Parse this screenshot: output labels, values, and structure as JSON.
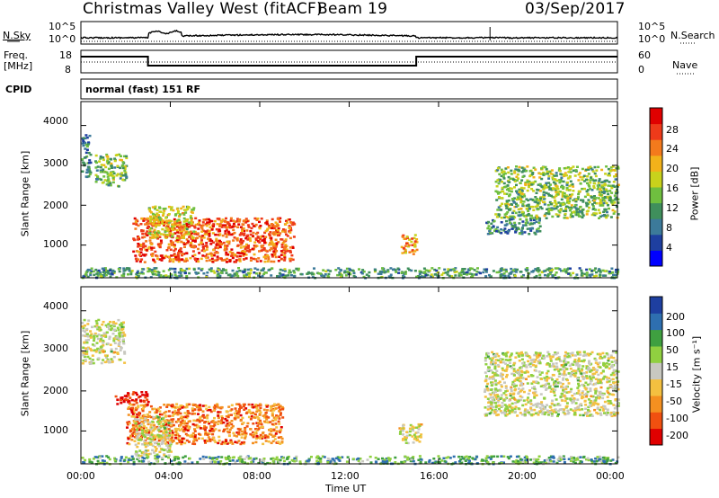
{
  "header": {
    "radar": "Christmas Valley West (fitACF)",
    "beam": "Beam 19",
    "date": "03/Sep/2017"
  },
  "nsky_panel": {
    "left_label": "N.Sky",
    "right_label": "N.Search",
    "left_ticks": [
      "10^5",
      "10^0"
    ],
    "right_ticks": [
      "10^5",
      "10^0"
    ]
  },
  "freq_panel": {
    "left_label_1": "Freq.",
    "left_label_2": "[MHz]",
    "right_label": "Nave",
    "left_ticks": [
      "18",
      "8"
    ],
    "right_ticks": [
      "60",
      "0"
    ],
    "cpid_label": "CPID",
    "cpid_text": "normal (fast) 151 RF"
  },
  "chart_data": [
    {
      "type": "heatmap",
      "name": "power",
      "ylabel": "Slant Range [km]",
      "yticks": [
        "4000",
        "3000",
        "2000",
        "1000"
      ],
      "ylim": [
        180,
        4600
      ],
      "colorbar_label": "Power [dB]",
      "colorbar_ticks": [
        "28",
        "24",
        "20",
        "16",
        "12",
        "8",
        "4"
      ],
      "colorbar_range": [
        0,
        32
      ],
      "colors": [
        "#0000ff",
        "#1e3fa0",
        "#3c7a9a",
        "#3f8f5c",
        "#6fbf3f",
        "#c8d21c",
        "#f2b21a",
        "#f47a1c",
        "#ee3a1a",
        "#e00000"
      ],
      "echo_regions": [
        {
          "t0": 0.0,
          "t1": 0.4,
          "r0": 2700,
          "r1": 3800,
          "level": 0.3
        },
        {
          "t0": 0.6,
          "t1": 2.0,
          "r0": 2500,
          "r1": 3300,
          "level": 0.45
        },
        {
          "t0": 2.3,
          "t1": 9.5,
          "r0": 600,
          "r1": 1700,
          "level": 0.8
        },
        {
          "t0": 3.0,
          "t1": 5.0,
          "r0": 1200,
          "r1": 2000,
          "level": 0.55
        },
        {
          "t0": 14.3,
          "t1": 15.0,
          "r0": 800,
          "r1": 1300,
          "level": 0.7
        },
        {
          "t0": 18.0,
          "t1": 20.5,
          "r0": 1300,
          "r1": 1700,
          "level": 0.3
        },
        {
          "t0": 18.5,
          "t1": 24.0,
          "r0": 1700,
          "r1": 3000,
          "level": 0.45
        },
        {
          "t0": 0.0,
          "t1": 24.0,
          "r0": 200,
          "r1": 450,
          "level": 0.35
        }
      ]
    },
    {
      "type": "heatmap",
      "name": "velocity",
      "ylabel": "Slant Range [km]",
      "yticks": [
        "4000",
        "3000",
        "2000",
        "1000"
      ],
      "ylim": [
        180,
        4600
      ],
      "xlabel": "Time UT",
      "xticks": [
        "00:00",
        "04:00",
        "08:00",
        "12:00",
        "16:00",
        "20:00",
        "00:00"
      ],
      "xlim": [
        0,
        24
      ],
      "colorbar_label": "Velocity [m s⁻¹]",
      "colorbar_ticks": [
        "200",
        "100",
        "50",
        "15",
        "-15",
        "-50",
        "-100",
        "-200"
      ],
      "colors": [
        "#e00000",
        "#f05010",
        "#f49020",
        "#f4c040",
        "#c8c8c0",
        "#90d040",
        "#3fa040",
        "#2e6fb0",
        "#1e3fa0"
      ],
      "echo_regions": [
        {
          "t0": 0.0,
          "t1": 1.9,
          "r0": 2700,
          "r1": 3800,
          "level": 0.5
        },
        {
          "t0": 1.5,
          "t1": 3.0,
          "r0": 1700,
          "r1": 2000,
          "level": 0.05
        },
        {
          "t0": 2.0,
          "t1": 9.0,
          "r0": 700,
          "r1": 1700,
          "level": 0.25
        },
        {
          "t0": 2.3,
          "t1": 4.0,
          "r0": 400,
          "r1": 1400,
          "level": 0.5
        },
        {
          "t0": 14.2,
          "t1": 15.2,
          "r0": 700,
          "r1": 1200,
          "level": 0.5
        },
        {
          "t0": 18.0,
          "t1": 24.0,
          "r0": 1400,
          "r1": 3000,
          "level": 0.5
        },
        {
          "t0": 0.0,
          "t1": 24.0,
          "r0": 200,
          "r1": 400,
          "level": 0.7
        }
      ]
    }
  ]
}
